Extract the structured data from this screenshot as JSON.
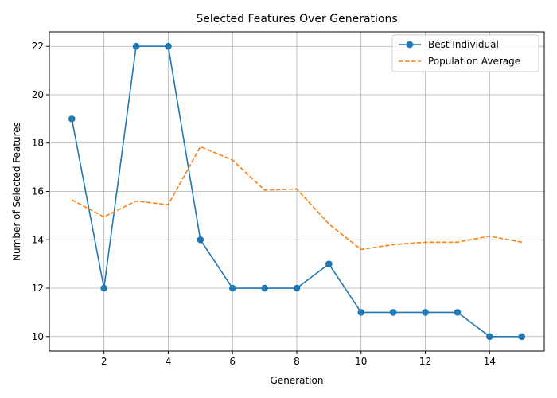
{
  "chart_data": {
    "type": "line",
    "title": "Selected Features Over Generations",
    "xlabel": "Generation",
    "ylabel": "Number of Selected Features",
    "x": [
      1,
      2,
      3,
      4,
      5,
      6,
      7,
      8,
      9,
      10,
      11,
      12,
      13,
      14,
      15
    ],
    "xlim": [
      0.3,
      15.7
    ],
    "ylim": [
      9.4,
      22.6
    ],
    "xticks": [
      2,
      4,
      6,
      8,
      10,
      12,
      14
    ],
    "yticks": [
      10,
      12,
      14,
      16,
      18,
      20,
      22
    ],
    "grid": true,
    "legend_position": "top-right",
    "series": [
      {
        "name": "Best Individual",
        "values": [
          19,
          12,
          22,
          22,
          14,
          12,
          12,
          12,
          13,
          11,
          11,
          11,
          11,
          10,
          10
        ],
        "color": "#1f77b4",
        "style": "solid",
        "marker": "circle"
      },
      {
        "name": "Population Average",
        "values": [
          15.65,
          14.95,
          15.6,
          15.45,
          17.85,
          17.3,
          16.05,
          16.1,
          14.65,
          13.6,
          13.8,
          13.9,
          13.9,
          14.15,
          13.9
        ],
        "color": "#ff7f0e",
        "style": "dashed",
        "marker": "none"
      }
    ]
  }
}
